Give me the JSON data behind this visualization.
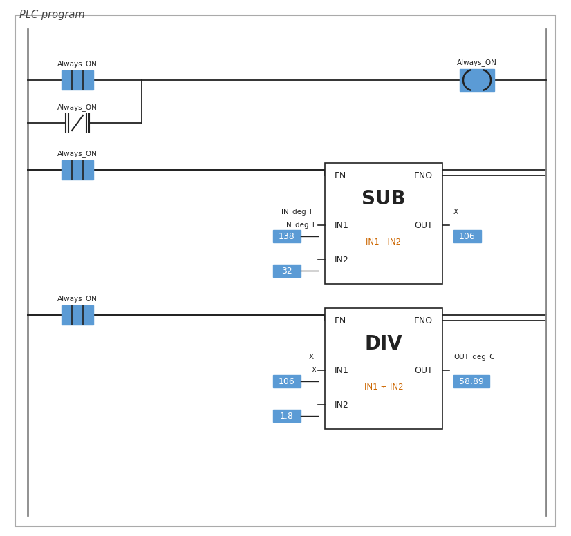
{
  "title": "PLC program",
  "bg_color": "#ffffff",
  "border_color": "#aaaaaa",
  "line_color": "#222222",
  "blue_fill": "#5b9bd5",
  "white": "#ffffff",
  "dark_text": "#222222",
  "formula_color": "#cc6600",
  "rung1": {
    "no_label": "Always_ON",
    "nc_label": "Always_ON",
    "coil_label": "Always_ON"
  },
  "rung2": {
    "contact_label": "Always_ON",
    "instruction": "SUB",
    "formula": "IN1 - IN2",
    "in1_var": "IN_deg_F",
    "in1_val": "138",
    "in2_val": "32",
    "out_var": "X",
    "out_val": "106"
  },
  "rung3": {
    "contact_label": "Always_ON",
    "instruction": "DIV",
    "formula": "IN1 ÷ IN2",
    "in1_var": "X",
    "in1_val": "106",
    "in2_val": "1.8",
    "out_var": "OUT_deg_C",
    "out_val": "58.89"
  },
  "fig_w": 8.26,
  "fig_h": 7.76,
  "dpi": 100
}
